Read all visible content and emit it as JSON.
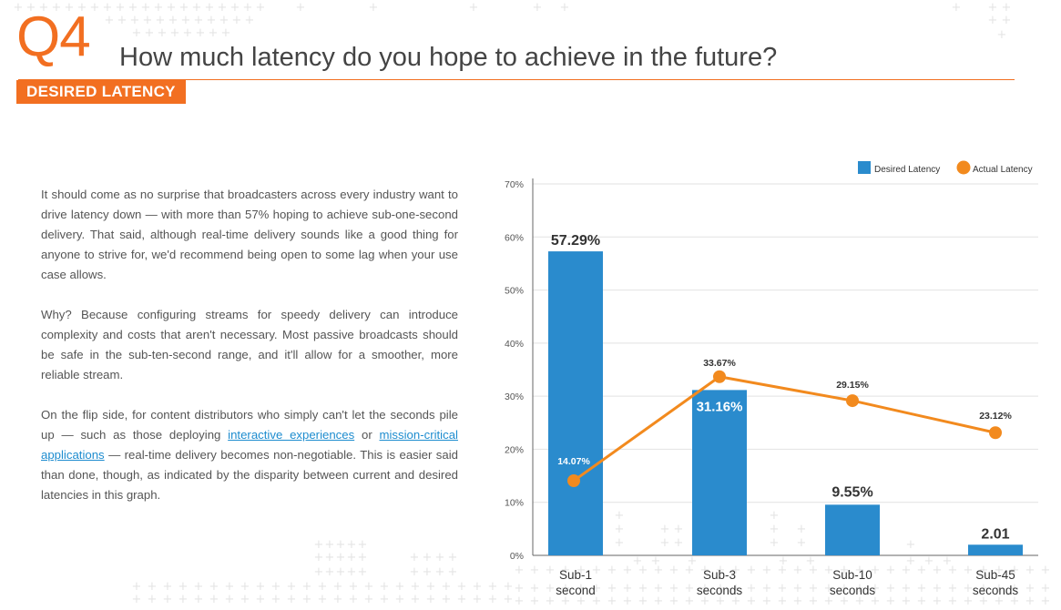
{
  "header": {
    "question_number": "Q4",
    "question_text": "How much latency do you hope to achieve in the future?",
    "section_tag": "DESIRED LATENCY"
  },
  "body": {
    "p1": "It should come as no surprise that broadcasters across every industry want to drive latency down — with more than 57% hoping to achieve sub-one-second delivery. That said, although real-time delivery sounds like a good thing for anyone to strive for, we'd recommend being open to some lag when your use case allows.",
    "p2": "Why? Because configuring streams for speedy delivery can introduce complexity and costs that aren't necessary. Most passive broadcasts should be safe in the sub-ten-second range, and it'll allow for a smoother, more reliable stream.",
    "p3_a": "On the flip side, for content distributors who simply can't let the seconds pile up — such as those deploying ",
    "p3_link1": "interactive experiences",
    "p3_b": " or ",
    "p3_link2": "mission-critical applications",
    "p3_c": " — real-time delivery becomes non-negotiable. This is easier said than done, though, as indicated by the disparity between current and desired latencies in this graph."
  },
  "chart_data": {
    "type": "bar",
    "categories": [
      [
        "Sub-1",
        "second"
      ],
      [
        "Sub-3",
        "seconds"
      ],
      [
        "Sub-10",
        "seconds"
      ],
      [
        "Sub-45",
        "seconds"
      ]
    ],
    "series": [
      {
        "name": "Desired Latency",
        "type": "bar",
        "color": "#2a8bcd",
        "values": [
          57.29,
          31.16,
          9.55,
          2.01
        ],
        "labels": [
          "57.29%",
          "31.16%",
          "9.55%",
          "2.01"
        ]
      },
      {
        "name": "Actual Latency",
        "type": "line",
        "color": "#f28a1e",
        "values": [
          14.07,
          33.67,
          29.15,
          23.12
        ],
        "labels": [
          "14.07%",
          "33.67%",
          "29.15%",
          "23.12%"
        ]
      }
    ],
    "yticks": [
      "0%",
      "10%",
      "20%",
      "30%",
      "40%",
      "50%",
      "60%",
      "70%"
    ],
    "ylim": [
      0,
      70
    ],
    "grid": true,
    "legend": "top-right"
  }
}
